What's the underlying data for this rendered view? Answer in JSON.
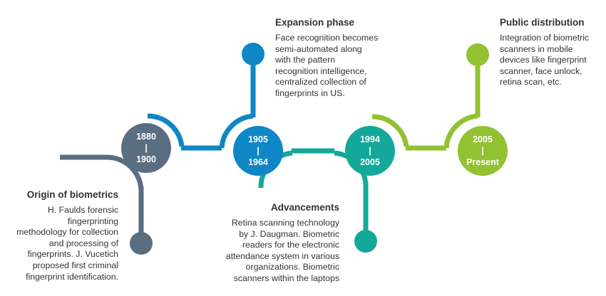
{
  "colors": {
    "slate": "#5a6e82",
    "blue": "#0f86c6",
    "teal": "#14a89a",
    "green": "#92c132"
  },
  "milestones": [
    {
      "id": "origin",
      "color": "#5a6e82",
      "year_start": "1880",
      "separator": "|",
      "year_end": "1900",
      "title": "Origin of biometrics",
      "lines": [
        "H. Faulds forensic",
        "fingerprinting",
        "methodology for collection",
        "and processing of",
        "fingerprints. J. Vucetich",
        "proposed first criminal",
        "fingerprint identification."
      ]
    },
    {
      "id": "expansion",
      "color": "#0f86c6",
      "year_start": "1905",
      "separator": "|",
      "year_end": "1964",
      "title": "Expansion phase",
      "lines": [
        "Face recognition becomes",
        "semi-automated along",
        "with the pattern",
        "recognition intelligence,",
        "centralized collection of",
        "fingerprints in US."
      ]
    },
    {
      "id": "advancements",
      "color": "#14a89a",
      "year_start": "1994",
      "separator": "|",
      "year_end": "2005",
      "title": "Advancements",
      "lines": [
        "Retina scanning technology",
        "by J. Daugman. Biometric",
        "readers for the electronic",
        "attendance system in various",
        "organizations. Biometric",
        "scanners within the laptops"
      ]
    },
    {
      "id": "public",
      "color": "#92c132",
      "year_start": "2005",
      "separator": "|",
      "year_end": "Present",
      "title": "Public distribution",
      "lines": [
        "Integration of biometric",
        "scanners in mobile",
        "devices like fingerprint",
        "scanner, face unlock,",
        "retina scan, etc."
      ]
    }
  ]
}
